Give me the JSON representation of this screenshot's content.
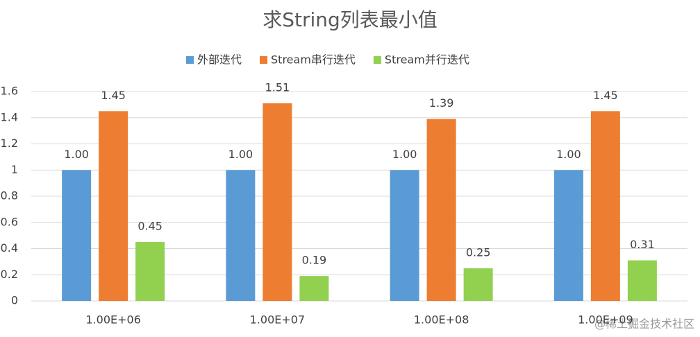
{
  "chart_data": {
    "type": "bar",
    "title": "求String列表最小值",
    "categories": [
      "1.00E+06",
      "1.00E+07",
      "1.00E+08",
      "1.00E+09"
    ],
    "series": [
      {
        "name": "外部迭代",
        "color": "#5b9bd5",
        "values": [
          1,
          1,
          1,
          1
        ],
        "value_labels": [
          "1.00",
          "1.00",
          "1.00",
          "1.00"
        ]
      },
      {
        "name": "Stream串行迭代",
        "color": "#ed7d31",
        "values": [
          1.45,
          1.51,
          1.39,
          1.45
        ]
      },
      {
        "name": "Stream并行迭代",
        "color": "#92d050",
        "values": [
          0.45,
          0.19,
          0.25,
          0.31
        ]
      }
    ],
    "ylim": [
      0,
      1.6
    ],
    "yticks": [
      0,
      0.2,
      0.4,
      0.6,
      0.8,
      1,
      1.2,
      1.4,
      1.6
    ],
    "grid": true,
    "legend": "top",
    "watermark": "@稀土掘金技术社区"
  }
}
